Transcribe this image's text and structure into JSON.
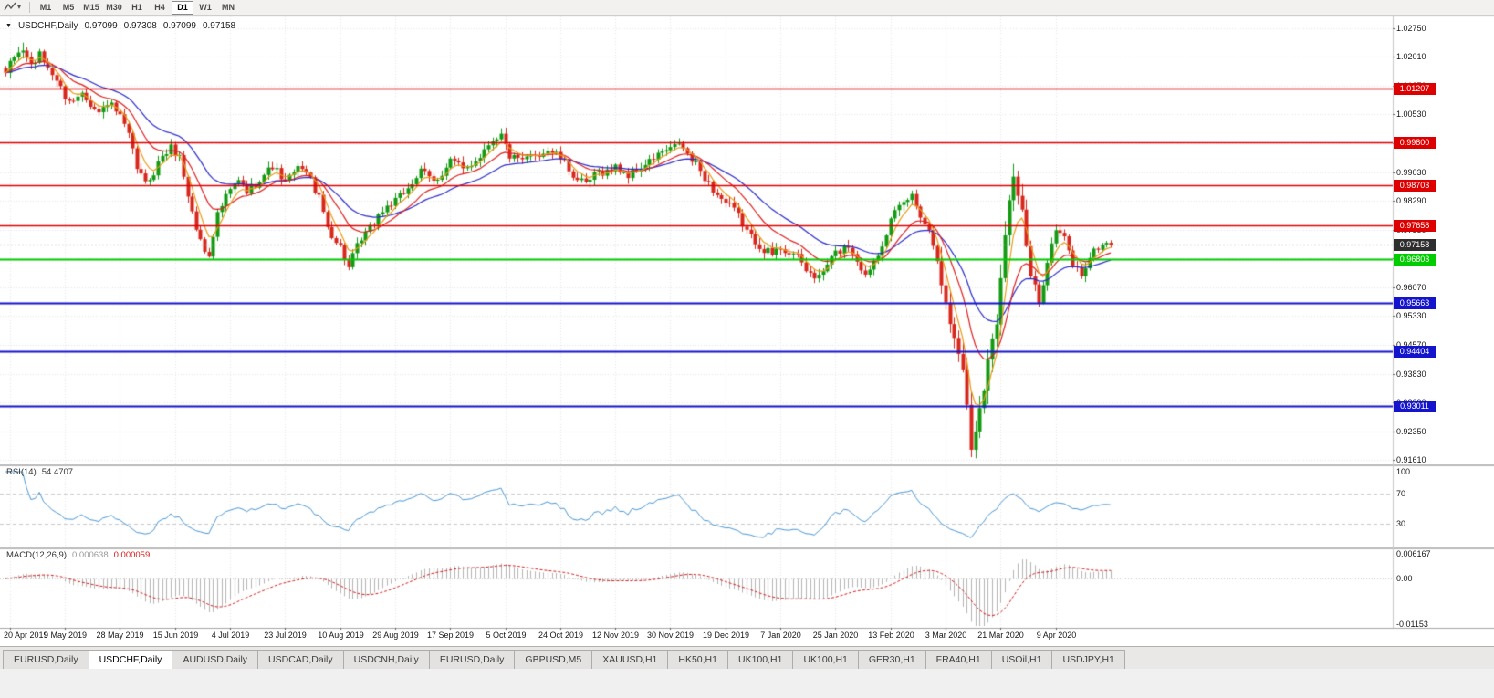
{
  "toolbar": {
    "timeframes": [
      "M1",
      "M5",
      "M15",
      "M30",
      "H1",
      "H4",
      "D1",
      "W1",
      "MN"
    ],
    "active_timeframe": "D1"
  },
  "chart": {
    "symbol_period": "USDCHF,Daily",
    "ohlc": {
      "open": "0.97099",
      "high": "0.97308",
      "low": "0.97099",
      "close": "0.97158"
    },
    "current_price": "0.97158",
    "current_price_value": 0.97158,
    "current_price_tag_color": "#2e2e2e",
    "price_axis_labels": [
      "1.02750",
      "1.02010",
      "1.01270",
      "1.00530",
      "0.99790",
      "0.99030",
      "0.98290",
      "0.97550",
      "0.96810",
      "0.96070",
      "0.95330",
      "0.94570",
      "0.93830",
      "0.93090",
      "0.92350",
      "0.91610"
    ],
    "hlines": [
      {
        "value": "1.01207",
        "price": 1.01207,
        "color": "#dd0000",
        "width": 1.5
      },
      {
        "value": "0.99800",
        "price": 0.998,
        "color": "#dd0000",
        "width": 1.5
      },
      {
        "value": "0.98703",
        "price": 0.98703,
        "color": "#dd0000",
        "width": 1.5
      },
      {
        "value": "0.97658",
        "price": 0.97658,
        "color": "#dd0000",
        "width": 1.5
      },
      {
        "value": "0.96803",
        "price": 0.96803,
        "color": "#00cc00",
        "width": 2
      },
      {
        "value": "0.95663",
        "price": 0.95663,
        "color": "#1414cc",
        "width": 2
      },
      {
        "value": "0.94404",
        "price": 0.94404,
        "color": "#1414cc",
        "width": 2
      },
      {
        "value": "0.93011",
        "price": 0.93011,
        "color": "#1414cc",
        "width": 2
      }
    ]
  },
  "rsi": {
    "label": "RSI(14)",
    "value": "54.4707",
    "axis_labels": [
      "100",
      "70",
      "30"
    ],
    "level_lines": [
      70,
      30
    ],
    "line_color": "#4a97d6"
  },
  "macd": {
    "label": "MACD(12,26,9)",
    "main_value": "0.000638",
    "signal_value": "0.000059",
    "axis_labels": [
      "0.006167",
      "0.00",
      "-0.01153"
    ],
    "hist_color": "#b3b3b3",
    "signal_color": "#d41a1a"
  },
  "date_axis": [
    "20 Apr 2019",
    "9 May 2019",
    "28 May 2019",
    "15 Jun 2019",
    "4 Jul 2019",
    "23 Jul 2019",
    "10 Aug 2019",
    "29 Aug 2019",
    "17 Sep 2019",
    "5 Oct 2019",
    "24 Oct 2019",
    "12 Nov 2019",
    "30 Nov 2019",
    "19 Dec 2019",
    "7 Jan 2020",
    "25 Jan 2020",
    "13 Feb 2020",
    "3 Mar 2020",
    "21 Mar 2020",
    "9 Apr 2020"
  ],
  "tabs": [
    {
      "label": "EURUSD,Daily",
      "active": false
    },
    {
      "label": "USDCHF,Daily",
      "active": true
    },
    {
      "label": "AUDUSD,Daily",
      "active": false
    },
    {
      "label": "USDCAD,Daily",
      "active": false
    },
    {
      "label": "USDCNH,Daily",
      "active": false
    },
    {
      "label": "EURUSD,Daily",
      "active": false
    },
    {
      "label": "GBPUSD,M5",
      "active": false
    },
    {
      "label": "XAUUSD,H1",
      "active": false
    },
    {
      "label": "HK50,H1",
      "active": false
    },
    {
      "label": "UK100,H1",
      "active": false
    },
    {
      "label": "UK100,H1",
      "active": false
    },
    {
      "label": "GER30,H1",
      "active": false
    },
    {
      "label": "FRA40,H1",
      "active": false
    },
    {
      "label": "USOil,H1",
      "active": false
    },
    {
      "label": "USDJPY,H1",
      "active": false
    }
  ],
  "chart_data": {
    "type": "candlestick",
    "symbol": "USDCHF",
    "timeframe": "Daily",
    "candle_count": 262,
    "y_axis_range": [
      0.9161,
      1.0275
    ],
    "first_tick_candle_index": 1,
    "tick_candle_step": 13,
    "candle_up_color": "#139a13",
    "candle_down_color": "#d8271c",
    "moving_averages": [
      {
        "period": 26,
        "color": "#2a2ac8"
      },
      {
        "period": 13,
        "color": "#dd2020"
      },
      {
        "period": 5,
        "color": "#e89b16"
      }
    ],
    "indicators": [
      {
        "name": "RSI",
        "period": 14,
        "last_value": 54.4707,
        "range": [
          0,
          100
        ],
        "levels": [
          30,
          70
        ]
      },
      {
        "name": "MACD",
        "fast": 12,
        "slow": 26,
        "signal": 9,
        "last_main": 0.000638,
        "last_signal": 5.9e-05,
        "range": [
          -0.01153,
          0.006167
        ]
      }
    ],
    "price_anchors": [
      [
        0,
        1.016
      ],
      [
        2,
        1.0195
      ],
      [
        4,
        1.022
      ],
      [
        6,
        1.0185
      ],
      [
        8,
        1.0205
      ],
      [
        10,
        1.017
      ],
      [
        12,
        1.014
      ],
      [
        14,
        1.0105
      ],
      [
        16,
        1.0085
      ],
      [
        18,
        1.011
      ],
      [
        20,
        1.008
      ],
      [
        22,
        1.006
      ],
      [
        24,
        1.0085
      ],
      [
        26,
        1.0055
      ],
      [
        27,
        1.004
      ],
      [
        29,
        1.0
      ],
      [
        31,
        0.992
      ],
      [
        33,
        0.987
      ],
      [
        35,
        0.99
      ],
      [
        37,
        0.995
      ],
      [
        39,
        0.997
      ],
      [
        41,
        0.994
      ],
      [
        43,
        0.984
      ],
      [
        45,
        0.976
      ],
      [
        47,
        0.9705
      ],
      [
        48,
        0.9695
      ],
      [
        50,
        0.979
      ],
      [
        53,
        0.986
      ],
      [
        55,
        0.9885
      ],
      [
        57,
        0.985
      ],
      [
        59,
        0.987
      ],
      [
        61,
        0.99
      ],
      [
        63,
        0.9925
      ],
      [
        66,
        0.987
      ],
      [
        68,
        0.99
      ],
      [
        70,
        0.9925
      ],
      [
        72,
        0.9885
      ],
      [
        74,
        0.983
      ],
      [
        76,
        0.976
      ],
      [
        79,
        0.9715
      ],
      [
        81,
        0.9655
      ],
      [
        83,
        0.9705
      ],
      [
        85,
        0.9745
      ],
      [
        88,
        0.9795
      ],
      [
        92,
        0.9825
      ],
      [
        95,
        0.987
      ],
      [
        98,
        0.99
      ],
      [
        101,
        0.988
      ],
      [
        105,
        0.9935
      ],
      [
        108,
        0.9905
      ],
      [
        110,
        0.993
      ],
      [
        112,
        0.995
      ],
      [
        115,
        0.9985
      ],
      [
        117,
        1.0
      ],
      [
        119,
        0.995
      ],
      [
        122,
        0.9925
      ],
      [
        125,
        0.995
      ],
      [
        128,
        0.9965
      ],
      [
        131,
        0.9935
      ],
      [
        134,
        0.99
      ],
      [
        137,
        0.987
      ],
      [
        140,
        0.99
      ],
      [
        144,
        0.992
      ],
      [
        147,
        0.989
      ],
      [
        150,
        0.992
      ],
      [
        153,
        0.994
      ],
      [
        157,
        0.996
      ],
      [
        159,
        0.9985
      ],
      [
        162,
        0.993
      ],
      [
        165,
        0.989
      ],
      [
        168,
        0.985
      ],
      [
        170,
        0.982
      ],
      [
        173,
        0.979
      ],
      [
        176,
        0.974
      ],
      [
        179,
        0.97
      ],
      [
        181,
        0.969
      ],
      [
        183,
        0.9715
      ],
      [
        186,
        0.969
      ],
      [
        189,
        0.965
      ],
      [
        192,
        0.9635
      ],
      [
        196,
        0.969
      ],
      [
        199,
        0.972
      ],
      [
        201,
        0.968
      ],
      [
        203,
        0.963
      ],
      [
        206,
        0.97
      ],
      [
        209,
        0.978
      ],
      [
        212,
        0.982
      ],
      [
        214,
        0.9845
      ],
      [
        216,
        0.98
      ],
      [
        218,
        0.975
      ],
      [
        220,
        0.968
      ],
      [
        222,
        0.956
      ],
      [
        224,
        0.948
      ],
      [
        226,
        0.94
      ],
      [
        228,
        0.9185
      ],
      [
        230,
        0.93
      ],
      [
        232,
        0.942
      ],
      [
        234,
        0.952
      ],
      [
        236,
        0.975
      ],
      [
        238,
        0.99
      ],
      [
        240,
        0.98
      ],
      [
        242,
        0.963
      ],
      [
        244,
        0.956
      ],
      [
        246,
        0.968
      ],
      [
        248,
        0.976
      ],
      [
        250,
        0.973
      ],
      [
        252,
        0.966
      ],
      [
        254,
        0.964
      ],
      [
        256,
        0.969
      ],
      [
        258,
        0.971
      ],
      [
        261,
        0.97158
      ]
    ]
  }
}
